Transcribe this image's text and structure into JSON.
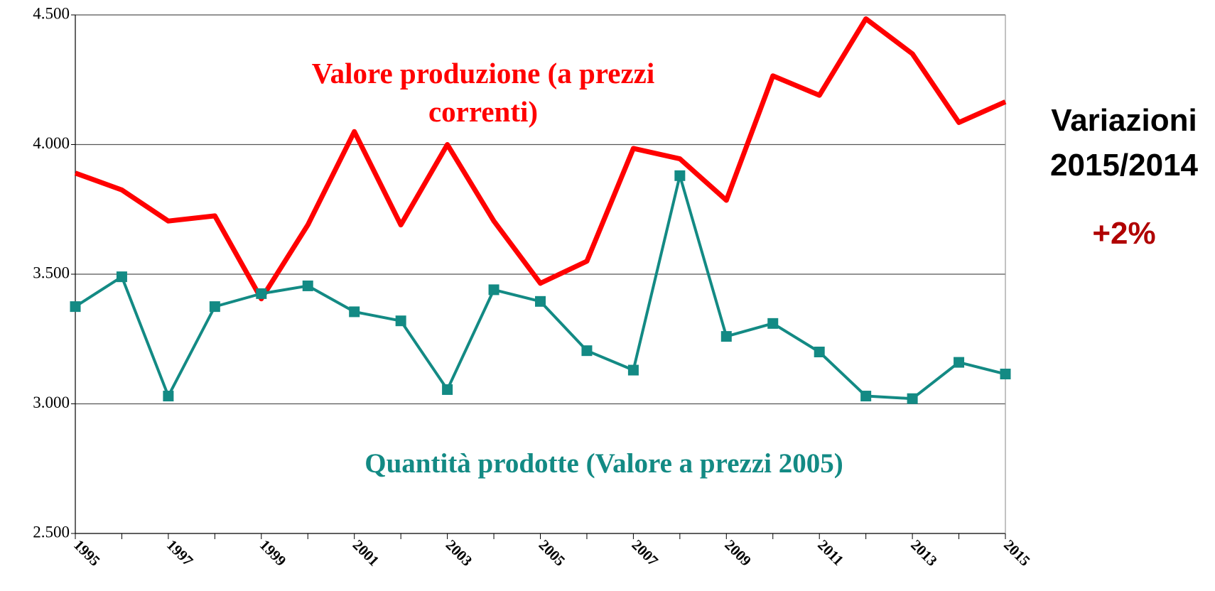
{
  "chart_data": {
    "type": "line",
    "categories": [
      "1995",
      null,
      "1997",
      null,
      "1999",
      null,
      "2001",
      null,
      "2003",
      null,
      "2005",
      null,
      "2007",
      null,
      "2009",
      null,
      "2011",
      null,
      "2013",
      null,
      "2015"
    ],
    "series": [
      {
        "name": "Valore produzione (a prezzi correnti)",
        "color": "#ff0000",
        "marker": false,
        "values": [
          3890,
          3825,
          3705,
          3725,
          3405,
          3690,
          4050,
          3690,
          4000,
          3705,
          3465,
          3550,
          3985,
          3945,
          3785,
          4265,
          4190,
          4485,
          4350,
          4085,
          4165
        ]
      },
      {
        "name": "Quantità prodotte (Valore a prezzi 2005)",
        "color": "#138a84",
        "marker": true,
        "values": [
          3375,
          3490,
          3030,
          3375,
          3425,
          3455,
          3355,
          3320,
          3055,
          3440,
          3395,
          3205,
          3130,
          3880,
          3260,
          3310,
          3200,
          3030,
          3020,
          3160,
          3115
        ]
      }
    ],
    "ylim": [
      2500,
      4500
    ],
    "yticks": [
      {
        "value": 2500,
        "label": "2.500"
      },
      {
        "value": 3000,
        "label": "3.000"
      },
      {
        "value": 3500,
        "label": "3.500"
      },
      {
        "value": 4000,
        "label": "4.000"
      },
      {
        "value": 4500,
        "label": "4.500"
      }
    ],
    "grid": true,
    "annotations": [
      "Variazioni 2015/2014",
      "+2%"
    ]
  }
}
